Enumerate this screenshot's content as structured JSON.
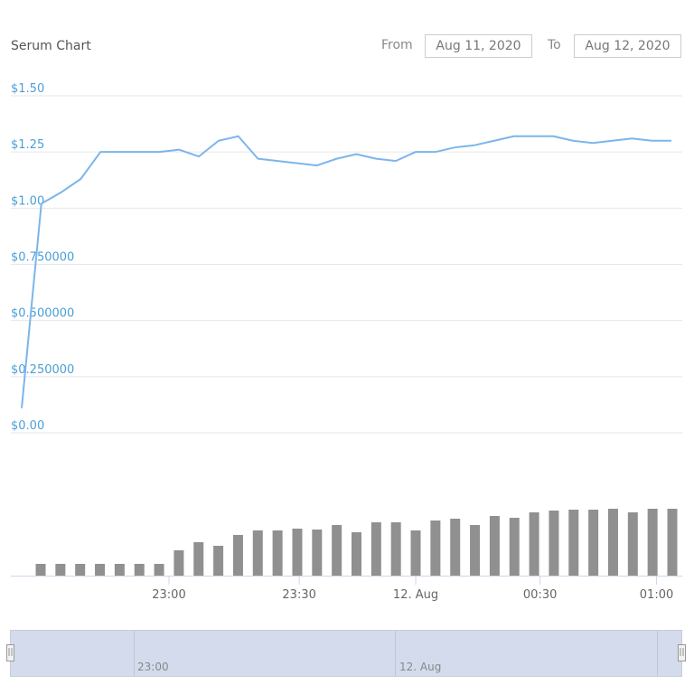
{
  "header": {
    "title": "Serum Chart",
    "from_label": "From",
    "from_value": "Aug 11, 2020",
    "to_label": "To",
    "to_value": "Aug 12, 2020"
  },
  "navigator": {
    "labels": [
      "23:00",
      "12. Aug"
    ]
  },
  "colors": {
    "price_line": "#7cb5ec",
    "volume_bar": "#909090",
    "axis_label": "#4b9fd5"
  },
  "chart_data": {
    "type": "line",
    "title": "Serum Chart",
    "price": {
      "yticks": [
        {
          "value": 1.5,
          "label": "$1.50"
        },
        {
          "value": 1.25,
          "label": "$1.25"
        },
        {
          "value": 1.0,
          "label": "$1.00"
        },
        {
          "value": 0.75,
          "label": "$0.750000"
        },
        {
          "value": 0.5,
          "label": "$0.500000"
        },
        {
          "value": 0.25,
          "label": "$0.250000"
        },
        {
          "value": 0,
          "label": "$0.00"
        }
      ],
      "ylim": [
        0,
        1.5
      ],
      "values": [
        0.11,
        1.02,
        1.07,
        1.13,
        1.25,
        1.25,
        1.25,
        1.25,
        1.26,
        1.23,
        1.3,
        1.32,
        1.22,
        1.21,
        1.2,
        1.19,
        1.22,
        1.24,
        1.22,
        1.21,
        1.25,
        1.25,
        1.27,
        1.28,
        1.3,
        1.32,
        1.32,
        1.32,
        1.3,
        1.29,
        1.3,
        1.31,
        1.3,
        1.3
      ]
    },
    "volume": {
      "type": "bar",
      "values": [
        13,
        13,
        13,
        13,
        13,
        13,
        13,
        28,
        37,
        33,
        45,
        50,
        50,
        52,
        51,
        56,
        48,
        59,
        59,
        50,
        61,
        63,
        56,
        66,
        64,
        70,
        72,
        73,
        73,
        74,
        70,
        74,
        74
      ]
    },
    "xticks": [
      {
        "index": 6.5,
        "label": "23:00"
      },
      {
        "index": 13.1,
        "label": "23:30"
      },
      {
        "index": 19,
        "label": "12. Aug"
      },
      {
        "index": 25.3,
        "label": "00:30"
      },
      {
        "index": 31.2,
        "label": "01:00"
      }
    ],
    "grid": true
  }
}
